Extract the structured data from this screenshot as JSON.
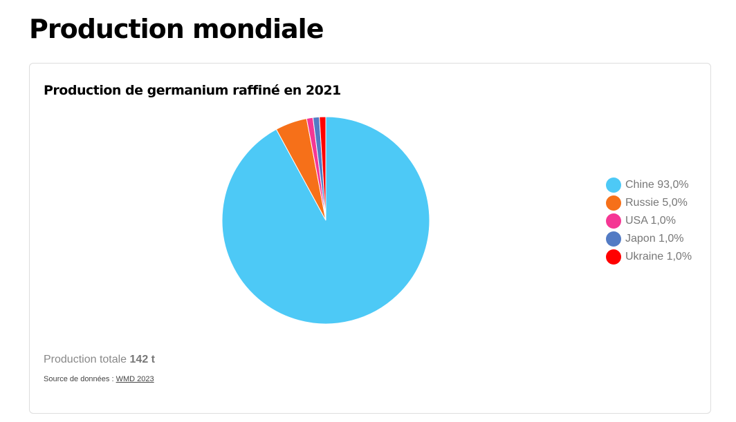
{
  "page_title": "Production mondiale",
  "chart_data": {
    "type": "pie",
    "title": "Production de germanium raffiné en 2021",
    "categories": [
      "Chine",
      "Russie",
      "USA",
      "Japon",
      "Ukraine"
    ],
    "values": [
      93.0,
      5.0,
      1.0,
      1.0,
      1.0
    ],
    "legend_labels": [
      "Chine 93,0%",
      "Russie 5,0%",
      "USA 1,0%",
      "Japon 1,0%",
      "Ukraine 1,0%"
    ],
    "colors": [
      "#4dc9f6",
      "#f67019",
      "#f53794",
      "#537bc4",
      "#ff0000"
    ],
    "legend_position": "right"
  },
  "footer": {
    "total_label": "Production totale",
    "total_value": "142 t",
    "source_label": "Source de données :",
    "source_link": "WMD 2023"
  }
}
